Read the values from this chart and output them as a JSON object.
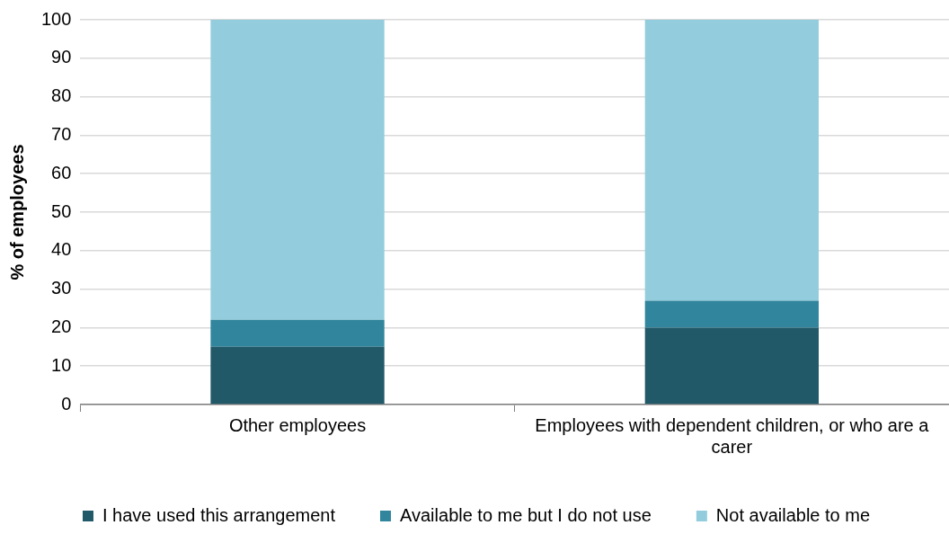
{
  "chart_data": {
    "type": "bar",
    "stacked": true,
    "ylabel": "% of employees",
    "categories": [
      "Other employees",
      "Employees with dependent children, or who are a carer"
    ],
    "series": [
      {
        "name": "I have used this arrangement",
        "color": "#215968",
        "values": [
          15,
          20
        ]
      },
      {
        "name": "Available to me but I do not use",
        "color": "#31859c",
        "values": [
          7,
          7
        ]
      },
      {
        "name": "Not available to me",
        "color": "#93cddd",
        "values": [
          78,
          73
        ]
      }
    ],
    "ylim": [
      0,
      100
    ],
    "yticks": [
      0,
      10,
      20,
      30,
      40,
      50,
      60,
      70,
      80,
      90,
      100
    ],
    "grid": "y",
    "legend": "bottom"
  }
}
